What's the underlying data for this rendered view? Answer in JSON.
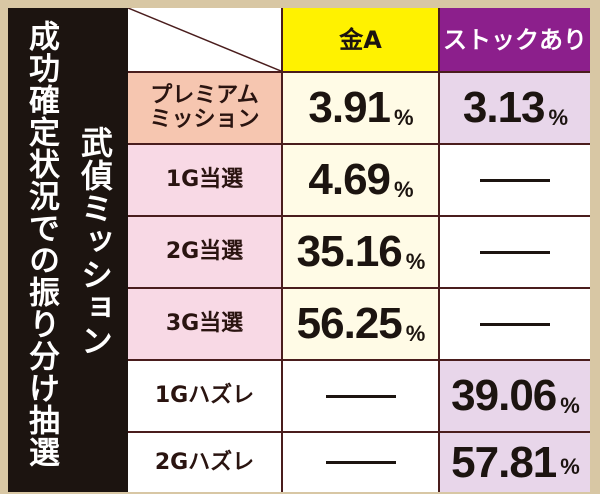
{
  "side_title": "成功確定状況での振り分け抽選",
  "side_subtitle": "武偵ミッション",
  "table": {
    "header": [
      "金A",
      "ストックあり"
    ],
    "rows": [
      {
        "label": "プレミアムミッション",
        "cells": [
          {
            "value": "3.91",
            "unit": "%"
          },
          {
            "value": "3.13",
            "unit": "%"
          }
        ]
      },
      {
        "label": "1G当選",
        "cells": [
          {
            "value": "4.69",
            "unit": "%"
          },
          null
        ]
      },
      {
        "label": "2G当選",
        "cells": [
          {
            "value": "35.16",
            "unit": "%"
          },
          null
        ]
      },
      {
        "label": "3G当選",
        "cells": [
          {
            "value": "56.25",
            "unit": "%"
          },
          null
        ]
      },
      {
        "label": "1Gハズレ",
        "cells": [
          null,
          {
            "value": "39.06",
            "unit": "%"
          }
        ]
      },
      {
        "label": "2Gハズレ",
        "cells": [
          null,
          {
            "value": "57.81",
            "unit": "%"
          }
        ]
      }
    ]
  }
}
